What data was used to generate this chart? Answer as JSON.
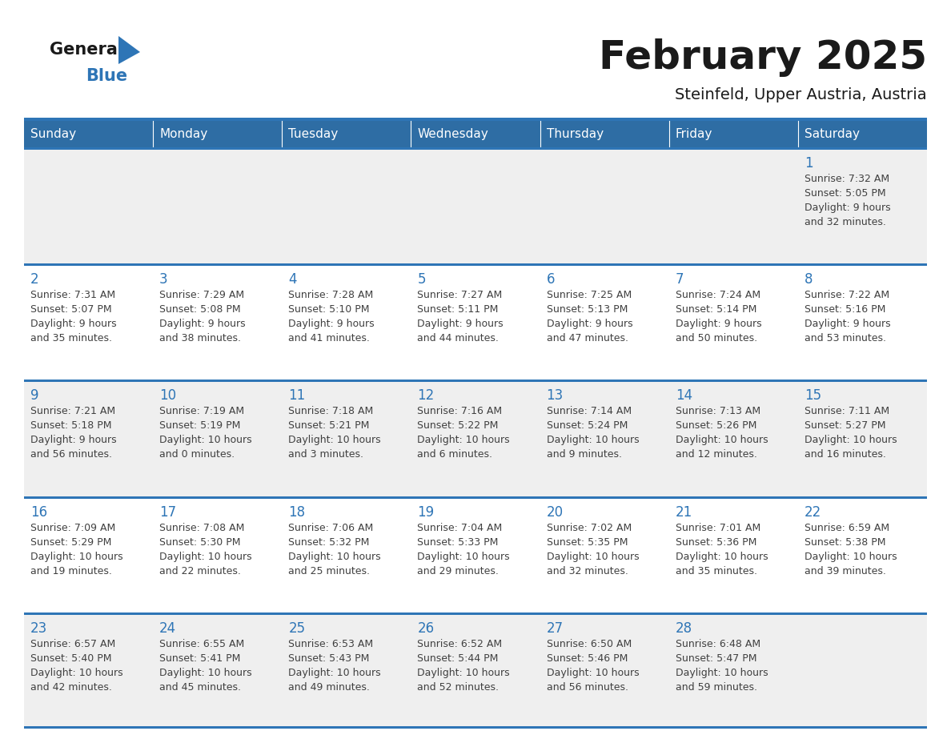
{
  "title": "February 2025",
  "subtitle": "Steinfeld, Upper Austria, Austria",
  "days_of_week": [
    "Sunday",
    "Monday",
    "Tuesday",
    "Wednesday",
    "Thursday",
    "Friday",
    "Saturday"
  ],
  "header_bg": "#2E6DA4",
  "header_text": "#FFFFFF",
  "bg_color": "#FFFFFF",
  "cell_bg_even": "#EFEFEF",
  "cell_bg_odd": "#FFFFFF",
  "border_color": "#2E75B6",
  "text_color": "#404040",
  "day_number_color": "#2E75B6",
  "title_color": "#1a1a1a",
  "subtitle_color": "#1a1a1a",
  "logo_general_color": "#1a1a1a",
  "logo_blue_color": "#2E75B6",
  "calendar_data": [
    [
      null,
      null,
      null,
      null,
      null,
      null,
      {
        "day": 1,
        "sunrise": "7:32 AM",
        "sunset": "5:05 PM",
        "daylight": "9 hours and 32 minutes."
      }
    ],
    [
      {
        "day": 2,
        "sunrise": "7:31 AM",
        "sunset": "5:07 PM",
        "daylight": "9 hours and 35 minutes."
      },
      {
        "day": 3,
        "sunrise": "7:29 AM",
        "sunset": "5:08 PM",
        "daylight": "9 hours and 38 minutes."
      },
      {
        "day": 4,
        "sunrise": "7:28 AM",
        "sunset": "5:10 PM",
        "daylight": "9 hours and 41 minutes."
      },
      {
        "day": 5,
        "sunrise": "7:27 AM",
        "sunset": "5:11 PM",
        "daylight": "9 hours and 44 minutes."
      },
      {
        "day": 6,
        "sunrise": "7:25 AM",
        "sunset": "5:13 PM",
        "daylight": "9 hours and 47 minutes."
      },
      {
        "day": 7,
        "sunrise": "7:24 AM",
        "sunset": "5:14 PM",
        "daylight": "9 hours and 50 minutes."
      },
      {
        "day": 8,
        "sunrise": "7:22 AM",
        "sunset": "5:16 PM",
        "daylight": "9 hours and 53 minutes."
      }
    ],
    [
      {
        "day": 9,
        "sunrise": "7:21 AM",
        "sunset": "5:18 PM",
        "daylight": "9 hours and 56 minutes."
      },
      {
        "day": 10,
        "sunrise": "7:19 AM",
        "sunset": "5:19 PM",
        "daylight": "10 hours and 0 minutes."
      },
      {
        "day": 11,
        "sunrise": "7:18 AM",
        "sunset": "5:21 PM",
        "daylight": "10 hours and 3 minutes."
      },
      {
        "day": 12,
        "sunrise": "7:16 AM",
        "sunset": "5:22 PM",
        "daylight": "10 hours and 6 minutes."
      },
      {
        "day": 13,
        "sunrise": "7:14 AM",
        "sunset": "5:24 PM",
        "daylight": "10 hours and 9 minutes."
      },
      {
        "day": 14,
        "sunrise": "7:13 AM",
        "sunset": "5:26 PM",
        "daylight": "10 hours and 12 minutes."
      },
      {
        "day": 15,
        "sunrise": "7:11 AM",
        "sunset": "5:27 PM",
        "daylight": "10 hours and 16 minutes."
      }
    ],
    [
      {
        "day": 16,
        "sunrise": "7:09 AM",
        "sunset": "5:29 PM",
        "daylight": "10 hours and 19 minutes."
      },
      {
        "day": 17,
        "sunrise": "7:08 AM",
        "sunset": "5:30 PM",
        "daylight": "10 hours and 22 minutes."
      },
      {
        "day": 18,
        "sunrise": "7:06 AM",
        "sunset": "5:32 PM",
        "daylight": "10 hours and 25 minutes."
      },
      {
        "day": 19,
        "sunrise": "7:04 AM",
        "sunset": "5:33 PM",
        "daylight": "10 hours and 29 minutes."
      },
      {
        "day": 20,
        "sunrise": "7:02 AM",
        "sunset": "5:35 PM",
        "daylight": "10 hours and 32 minutes."
      },
      {
        "day": 21,
        "sunrise": "7:01 AM",
        "sunset": "5:36 PM",
        "daylight": "10 hours and 35 minutes."
      },
      {
        "day": 22,
        "sunrise": "6:59 AM",
        "sunset": "5:38 PM",
        "daylight": "10 hours and 39 minutes."
      }
    ],
    [
      {
        "day": 23,
        "sunrise": "6:57 AM",
        "sunset": "5:40 PM",
        "daylight": "10 hours and 42 minutes."
      },
      {
        "day": 24,
        "sunrise": "6:55 AM",
        "sunset": "5:41 PM",
        "daylight": "10 hours and 45 minutes."
      },
      {
        "day": 25,
        "sunrise": "6:53 AM",
        "sunset": "5:43 PM",
        "daylight": "10 hours and 49 minutes."
      },
      {
        "day": 26,
        "sunrise": "6:52 AM",
        "sunset": "5:44 PM",
        "daylight": "10 hours and 52 minutes."
      },
      {
        "day": 27,
        "sunrise": "6:50 AM",
        "sunset": "5:46 PM",
        "daylight": "10 hours and 56 minutes."
      },
      {
        "day": 28,
        "sunrise": "6:48 AM",
        "sunset": "5:47 PM",
        "daylight": "10 hours and 59 minutes."
      },
      null
    ]
  ]
}
